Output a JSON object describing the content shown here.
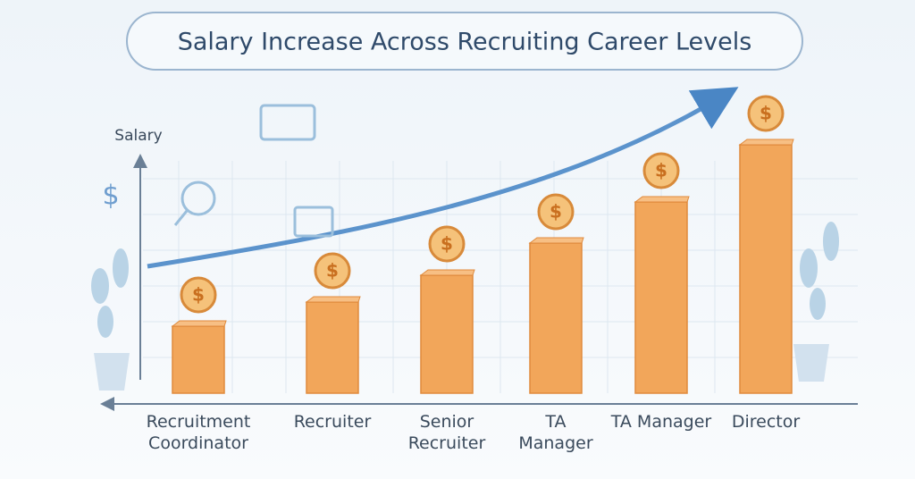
{
  "chart_data": {
    "type": "bar",
    "title": "Salary Increase Across Recruiting Career Levels",
    "y_label": "Salary",
    "coin_symbol": "$",
    "categories": [
      "Recruitment\nCoordinator",
      "Recruiter",
      "Senior\nRecruiter",
      "TA\nManager",
      "TA Manager",
      "Director"
    ],
    "values": [
      75,
      102,
      132,
      168,
      214,
      278
    ],
    "color": "#f2a65a",
    "ylim": [
      0,
      300
    ]
  }
}
